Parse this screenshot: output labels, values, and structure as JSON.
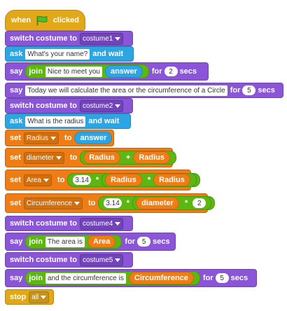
{
  "hat": {
    "prefix": "when",
    "suffix": "clicked",
    "icon": "green-flag-icon"
  },
  "blocks": {
    "b1": {
      "kw": "switch costume to",
      "dd": "costume1"
    },
    "b2": {
      "kw": "ask",
      "inp": "What's your name?",
      "suffix": "and wait"
    },
    "b3": {
      "kw": "say",
      "join": "join",
      "inp": "Nice to meet you",
      "rep": "answer",
      "for": "for",
      "num": "2",
      "secs": "secs"
    },
    "b4": {
      "kw": "say",
      "inp": "Today we will calculate the area or the circumference of a Circle",
      "for": "for",
      "num": "5",
      "secs": "secs"
    },
    "b5": {
      "kw": "switch costume to",
      "dd": "costume2"
    },
    "b6": {
      "kw": "ask",
      "inp": "What is the radius",
      "suffix": "and wait"
    },
    "b7": {
      "kw": "set",
      "dd": "Radius",
      "to": "to",
      "rep": "answer"
    },
    "b8": {
      "kw": "set",
      "dd": "diameter",
      "to": "to",
      "rep1": "Radius",
      "op": "+",
      "rep2": "Radius"
    },
    "b9": {
      "kw": "set",
      "dd": "Area",
      "to": "to",
      "num": "3.14",
      "op1": "*",
      "rep1": "Radius",
      "op2": "*",
      "rep2": "Radius"
    },
    "b10": {
      "kw": "set",
      "dd": "Circumference",
      "to": "to",
      "num": "3.14",
      "op1": "*",
      "rep": "diameter",
      "op2": "*",
      "num2": "2"
    },
    "b11": {
      "kw": "switch costume to",
      "dd": "costume4"
    },
    "b12": {
      "kw": "say",
      "join": "join",
      "inp": "The area is",
      "rep": "Area",
      "for": "for",
      "num": "5",
      "secs": "secs"
    },
    "b13": {
      "kw": "switch costume to",
      "dd": "costume5"
    },
    "b14": {
      "kw": "say",
      "join": "join",
      "inp": "and the circumference is",
      "rep": "Circumference",
      "for": "for",
      "num": "5",
      "secs": "secs"
    },
    "b15": {
      "kw": "stop",
      "dd": "all"
    }
  },
  "colors": {
    "looks": "#8a55d7",
    "sensing": "#2ca5e2",
    "data": "#ee7d16",
    "control": "#e1a91a",
    "operators": "#5cb712"
  }
}
